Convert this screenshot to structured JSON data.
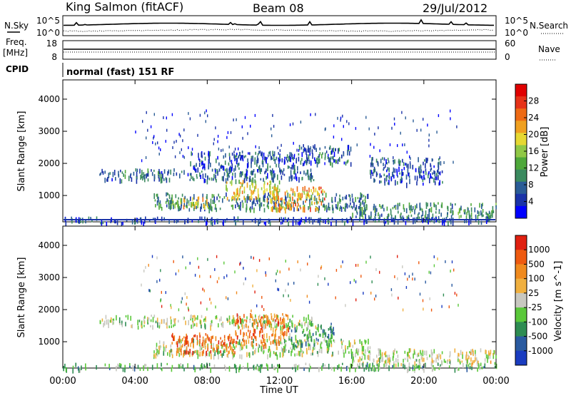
{
  "header": {
    "station": "King Salmon (fitACF)",
    "beam": "Beam 08",
    "date": "29/Jul/2012"
  },
  "top_panels": {
    "noise": {
      "left_label": "N.Sky",
      "right_label": "N.Search",
      "left_ticks": [
        "10^5",
        "10^0"
      ],
      "right_ticks": [
        "10^5",
        "10^0"
      ]
    },
    "freq": {
      "left_label": "Freq.",
      "left_unit": "[MHz]",
      "right_label": "Nave",
      "left_ticks": [
        "18",
        "8"
      ],
      "right_ticks": [
        "60",
        "0"
      ]
    },
    "cpid": {
      "label": "CPID",
      "value": "normal (fast) 151 RF"
    }
  },
  "chart_data": [
    {
      "type": "heatmap",
      "panel": "power",
      "title": "",
      "xlabel": "Time UT",
      "ylabel": "Slant Range [km]",
      "x_ticks": [
        "00:00",
        "04:00",
        "08:00",
        "12:00",
        "16:00",
        "20:00",
        "00:00"
      ],
      "xlim_hours": [
        0,
        24
      ],
      "y_ticks": [
        1000,
        2000,
        3000,
        4000
      ],
      "ylim": [
        180,
        4600
      ],
      "colorbar": {
        "label": "Power [dB]",
        "ticks": [
          "4",
          "8",
          "12",
          "16",
          "20",
          "24",
          "28"
        ],
        "colors": [
          "#0000ff",
          "#1a33a8",
          "#2a5c96",
          "#3b8a5f",
          "#4ea83a",
          "#90c846",
          "#e6d832",
          "#f0a020",
          "#ee6a14",
          "#e63218",
          "#e00000"
        ]
      },
      "bands": [
        {
          "t": [
            2.0,
            14.0
          ],
          "r": [
            1500,
            1850
          ],
          "level": 0.2
        },
        {
          "t": [
            7.0,
            13.0
          ],
          "r": [
            1800,
            2400
          ],
          "level": 0.15
        },
        {
          "t": [
            5.0,
            17.0
          ],
          "r": [
            600,
            1100
          ],
          "level": 0.25
        },
        {
          "t": [
            16.0,
            24.0
          ],
          "r": [
            300,
            800
          ],
          "level": 0.3
        },
        {
          "t": [
            13.0,
            16.0
          ],
          "r": [
            2000,
            2600
          ],
          "level": 0.2
        },
        {
          "t": [
            17.0,
            21.0
          ],
          "r": [
            1400,
            2200
          ],
          "level": 0.15
        },
        {
          "t": [
            0.0,
            24.0
          ],
          "r": [
            180,
            350
          ],
          "level": 0.15
        },
        {
          "t": [
            9.0,
            12.0
          ],
          "r": [
            900,
            1500
          ],
          "level": 0.6
        },
        {
          "t": [
            11.5,
            14.5
          ],
          "r": [
            600,
            1300
          ],
          "level": 0.7
        },
        {
          "t": [
            6.0,
            8.0
          ],
          "r": [
            700,
            1000
          ],
          "level": 0.6
        }
      ]
    },
    {
      "type": "heatmap",
      "panel": "velocity",
      "title": "",
      "xlabel": "Time UT",
      "ylabel": "Slant Range [km]",
      "x_ticks": [
        "00:00",
        "04:00",
        "08:00",
        "12:00",
        "16:00",
        "20:00",
        "00:00"
      ],
      "xlim_hours": [
        0,
        24
      ],
      "y_ticks": [
        1000,
        2000,
        3000,
        4000
      ],
      "ylim": [
        180,
        4600
      ],
      "colorbar": {
        "label": "Velocity [m s^-1]",
        "ticks": [
          "1000",
          "500",
          "100",
          "25",
          "-25",
          "-100",
          "-500",
          "-1000"
        ],
        "colors": [
          "#1a3cc0",
          "#2a5aa0",
          "#2e8c52",
          "#5ac83a",
          "#c8c8c0",
          "#f0b040",
          "#f08a1e",
          "#ee5a10",
          "#e02010"
        ]
      },
      "bands": [
        {
          "t": [
            2.0,
            14.0
          ],
          "r": [
            1500,
            1850
          ],
          "level": 0.45
        },
        {
          "t": [
            5.0,
            17.0
          ],
          "r": [
            600,
            1100
          ],
          "level": 0.45
        },
        {
          "t": [
            16.0,
            24.0
          ],
          "r": [
            300,
            800
          ],
          "level": 0.5
        },
        {
          "t": [
            6.0,
            9.5
          ],
          "r": [
            700,
            1300
          ],
          "level": 0.85
        },
        {
          "t": [
            9.5,
            12.5
          ],
          "r": [
            900,
            1900
          ],
          "level": 0.8
        },
        {
          "t": [
            12.5,
            15.0
          ],
          "r": [
            900,
            1600
          ],
          "level": 0.3
        },
        {
          "t": [
            0.0,
            24.0
          ],
          "r": [
            180,
            350
          ],
          "level": 0.35
        }
      ]
    }
  ]
}
